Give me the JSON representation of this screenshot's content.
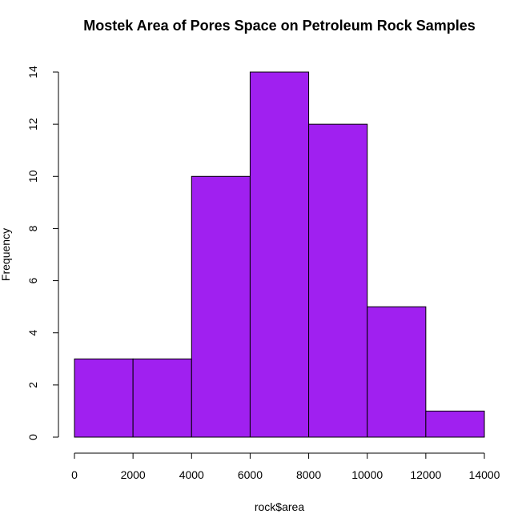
{
  "chart_data": {
    "type": "bar",
    "title": "Mostek Area of Pores Space on Petroleum Rock Samples",
    "xlabel": "rock$area",
    "ylabel": "Frequency",
    "bin_edges": [
      0,
      2000,
      4000,
      6000,
      8000,
      10000,
      12000,
      14000
    ],
    "values": [
      3,
      3,
      10,
      14,
      12,
      5,
      1
    ],
    "xlim": [
      0,
      14000
    ],
    "ylim": [
      0,
      14
    ],
    "x_ticks": [
      0,
      2000,
      4000,
      6000,
      8000,
      10000,
      12000,
      14000
    ],
    "x_tick_labels": [
      "0",
      "2000",
      "4000",
      "6000",
      "8000",
      "10000",
      "12000",
      "14000"
    ],
    "y_ticks": [
      0,
      2,
      4,
      6,
      8,
      10,
      12,
      14
    ],
    "y_tick_labels": [
      "0",
      "2",
      "4",
      "6",
      "8",
      "10",
      "12",
      "14"
    ],
    "bar_color": "#a020f0",
    "grid": false
  }
}
